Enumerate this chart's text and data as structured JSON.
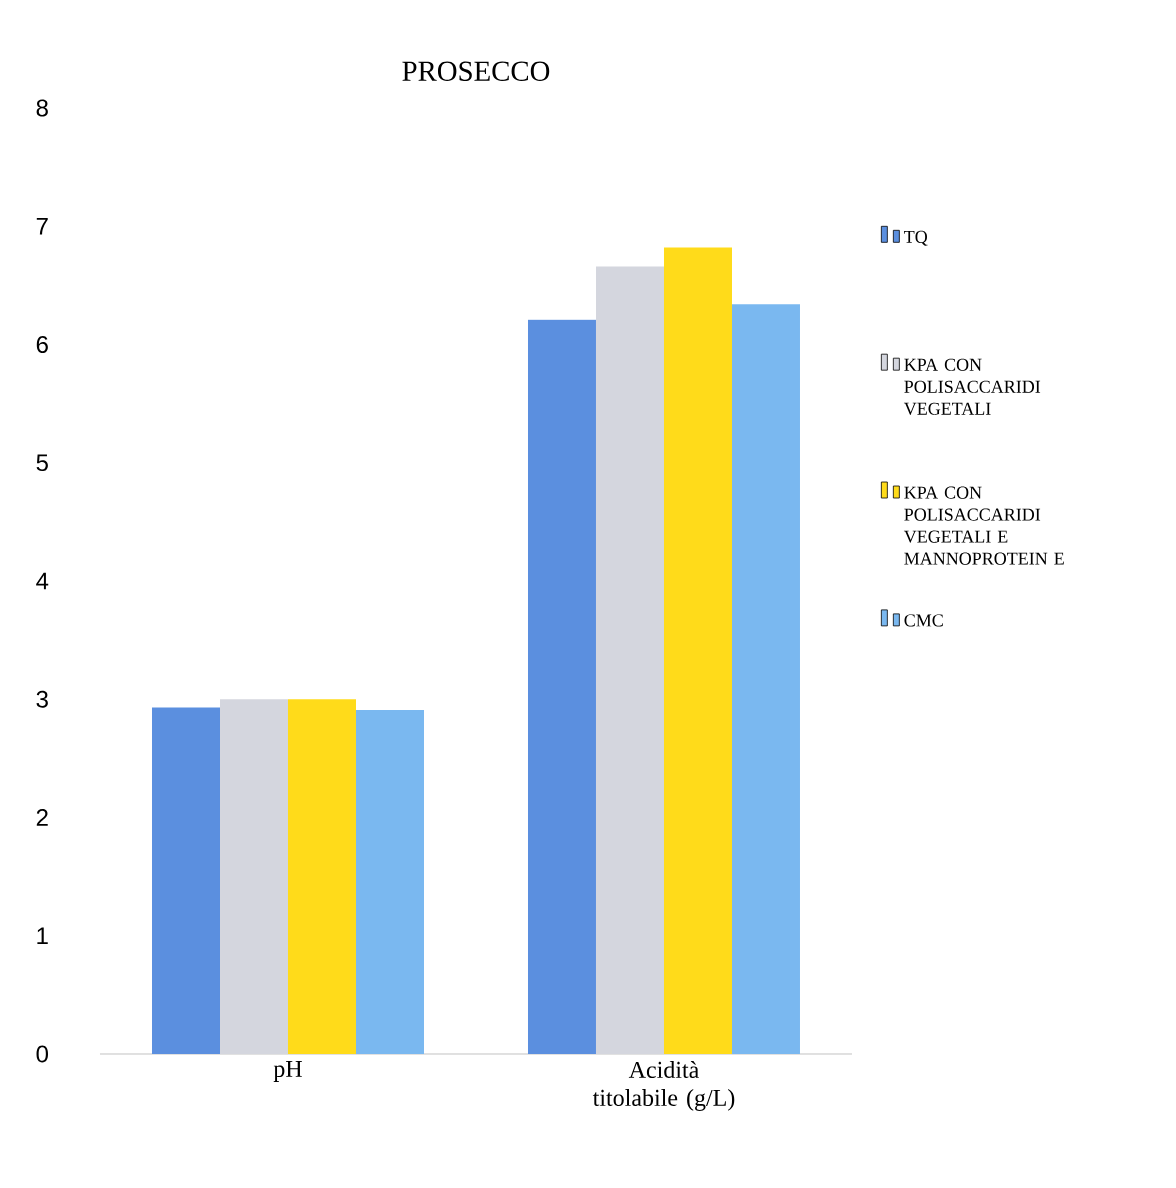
{
  "chart_data": {
    "type": "bar",
    "title": "PROSECCO",
    "categories": [
      "pH",
      "Acidità titolabile (g/L)"
    ],
    "series": [
      {
        "name": "TQ",
        "color": "#5b8fdf",
        "values": [
          2.93,
          6.21
        ]
      },
      {
        "name": "KPA CON POLISACCARIDI VEGETALI",
        "color": "#d4d6de",
        "values": [
          3.0,
          6.66
        ]
      },
      {
        "name": "KPA CON POLISACCARIDI VEGETALI E MANNOPROTEIN E",
        "color": "#ffdb1a",
        "values": [
          3.0,
          6.82
        ]
      },
      {
        "name": "CMC",
        "color": "#7ab8f0",
        "values": [
          2.91,
          6.34
        ]
      }
    ],
    "ylim": [
      0,
      8
    ],
    "yticks": [
      0,
      1,
      2,
      3,
      4,
      5,
      6,
      7,
      8
    ],
    "grid": false,
    "legend": "right"
  }
}
